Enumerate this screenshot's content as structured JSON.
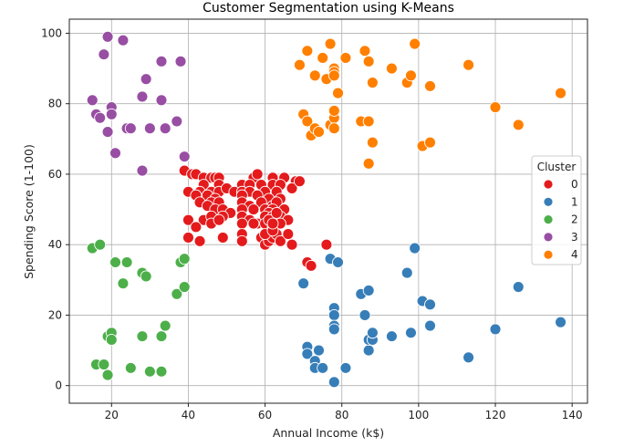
{
  "chart_data": {
    "type": "scatter",
    "title": "Customer Segmentation using K-Means",
    "xlabel": "Annual Income (k$)",
    "ylabel": "Spending Score (1-100)",
    "xlim": [
      9,
      144
    ],
    "ylim": [
      -5,
      104
    ],
    "xticks": [
      20,
      40,
      60,
      80,
      100,
      120,
      140
    ],
    "yticks": [
      0,
      20,
      40,
      60,
      80,
      100
    ],
    "grid": true,
    "legend": {
      "title": "Cluster",
      "placement": "right"
    },
    "series": [
      {
        "name": "0",
        "color": "#e41a1c",
        "points": [
          [
            39,
            61
          ],
          [
            41,
            60
          ],
          [
            42,
            60
          ],
          [
            44,
            59
          ],
          [
            46,
            59
          ],
          [
            47,
            59
          ],
          [
            48,
            59
          ],
          [
            57,
            59
          ],
          [
            58,
            60
          ],
          [
            62,
            59
          ],
          [
            65,
            59
          ],
          [
            68,
            58
          ],
          [
            44,
            57
          ],
          [
            48,
            57
          ],
          [
            54,
            57
          ],
          [
            56,
            57
          ],
          [
            59,
            57
          ],
          [
            62,
            57
          ],
          [
            64,
            57
          ],
          [
            67,
            56
          ],
          [
            69,
            58
          ],
          [
            40,
            55
          ],
          [
            43,
            55
          ],
          [
            46,
            55
          ],
          [
            48,
            55
          ],
          [
            50,
            56
          ],
          [
            52,
            55
          ],
          [
            54,
            55
          ],
          [
            56,
            55
          ],
          [
            60,
            55
          ],
          [
            63,
            55
          ],
          [
            42,
            54
          ],
          [
            45,
            54
          ],
          [
            47,
            53
          ],
          [
            54,
            54
          ],
          [
            58,
            54
          ],
          [
            61,
            53
          ],
          [
            64,
            53
          ],
          [
            43,
            52
          ],
          [
            46,
            52
          ],
          [
            48,
            52
          ],
          [
            54,
            52
          ],
          [
            56,
            51
          ],
          [
            59,
            52
          ],
          [
            62,
            51
          ],
          [
            63,
            52
          ],
          [
            45,
            51
          ],
          [
            47,
            50
          ],
          [
            49,
            50
          ],
          [
            51,
            49
          ],
          [
            54,
            50
          ],
          [
            57,
            50
          ],
          [
            60,
            50
          ],
          [
            62,
            50
          ],
          [
            65,
            50
          ],
          [
            61,
            49
          ],
          [
            40,
            47
          ],
          [
            44,
            47
          ],
          [
            46,
            48
          ],
          [
            49,
            48
          ],
          [
            54,
            48
          ],
          [
            56,
            47
          ],
          [
            58,
            46
          ],
          [
            60,
            48
          ],
          [
            62,
            48
          ],
          [
            64,
            48
          ],
          [
            66,
            47
          ],
          [
            42,
            45
          ],
          [
            46,
            46
          ],
          [
            48,
            47
          ],
          [
            54,
            46
          ],
          [
            57,
            46
          ],
          [
            60,
            46
          ],
          [
            62,
            45
          ],
          [
            64,
            46
          ],
          [
            40,
            42
          ],
          [
            43,
            41
          ],
          [
            49,
            42
          ],
          [
            54,
            43
          ],
          [
            54,
            41
          ],
          [
            59,
            42
          ],
          [
            60,
            40
          ],
          [
            61,
            41
          ],
          [
            62,
            42
          ],
          [
            63,
            43
          ],
          [
            64,
            41
          ],
          [
            66,
            43
          ],
          [
            67,
            40
          ],
          [
            60,
            43
          ],
          [
            62,
            44
          ],
          [
            61,
            47
          ],
          [
            62,
            46
          ],
          [
            63,
            49
          ],
          [
            76,
            40
          ],
          [
            71,
            35
          ],
          [
            72,
            34
          ]
        ]
      },
      {
        "name": "1",
        "color": "#377eb8",
        "points": [
          [
            70,
            29
          ],
          [
            71,
            11
          ],
          [
            71,
            9
          ],
          [
            73,
            7
          ],
          [
            73,
            5
          ],
          [
            74,
            10
          ],
          [
            75,
            5
          ],
          [
            77,
            36
          ],
          [
            78,
            22
          ],
          [
            78,
            20
          ],
          [
            78,
            17
          ],
          [
            78,
            16
          ],
          [
            78,
            1
          ],
          [
            79,
            35
          ],
          [
            81,
            5
          ],
          [
            85,
            26
          ],
          [
            86,
            20
          ],
          [
            87,
            27
          ],
          [
            87,
            10
          ],
          [
            87,
            13
          ],
          [
            88,
            13
          ],
          [
            88,
            15
          ],
          [
            93,
            14
          ],
          [
            97,
            32
          ],
          [
            98,
            15
          ],
          [
            99,
            39
          ],
          [
            101,
            24
          ],
          [
            103,
            23
          ],
          [
            103,
            17
          ],
          [
            113,
            8
          ],
          [
            120,
            16
          ],
          [
            126,
            28
          ],
          [
            137,
            18
          ]
        ]
      },
      {
        "name": "2",
        "color": "#4daf4a",
        "points": [
          [
            15,
            39
          ],
          [
            17,
            40
          ],
          [
            16,
            6
          ],
          [
            18,
            6
          ],
          [
            19,
            14
          ],
          [
            19,
            3
          ],
          [
            20,
            15
          ],
          [
            20,
            13
          ],
          [
            21,
            35
          ],
          [
            23,
            29
          ],
          [
            24,
            35
          ],
          [
            25,
            5
          ],
          [
            28,
            32
          ],
          [
            28,
            14
          ],
          [
            29,
            31
          ],
          [
            30,
            4
          ],
          [
            33,
            14
          ],
          [
            33,
            4
          ],
          [
            34,
            17
          ],
          [
            37,
            26
          ],
          [
            38,
            35
          ],
          [
            39,
            36
          ],
          [
            39,
            28
          ]
        ]
      },
      {
        "name": "3",
        "color": "#984ea3",
        "points": [
          [
            15,
            81
          ],
          [
            16,
            77
          ],
          [
            17,
            76
          ],
          [
            18,
            94
          ],
          [
            19,
            99
          ],
          [
            19,
            72
          ],
          [
            20,
            79
          ],
          [
            20,
            77
          ],
          [
            21,
            66
          ],
          [
            23,
            98
          ],
          [
            24,
            73
          ],
          [
            25,
            73
          ],
          [
            28,
            82
          ],
          [
            28,
            61
          ],
          [
            29,
            87
          ],
          [
            30,
            73
          ],
          [
            33,
            92
          ],
          [
            33,
            81
          ],
          [
            34,
            73
          ],
          [
            37,
            75
          ],
          [
            38,
            92
          ],
          [
            39,
            65
          ]
        ]
      },
      {
        "name": "4",
        "color": "#ff7f00",
        "points": [
          [
            69,
            91
          ],
          [
            70,
            77
          ],
          [
            71,
            95
          ],
          [
            71,
            75
          ],
          [
            72,
            71
          ],
          [
            73,
            88
          ],
          [
            73,
            73
          ],
          [
            74,
            72
          ],
          [
            75,
            93
          ],
          [
            76,
            87
          ],
          [
            77,
            97
          ],
          [
            77,
            74
          ],
          [
            78,
            90
          ],
          [
            78,
            89
          ],
          [
            78,
            88
          ],
          [
            78,
            76
          ],
          [
            78,
            78
          ],
          [
            78,
            73
          ],
          [
            79,
            83
          ],
          [
            81,
            93
          ],
          [
            85,
            75
          ],
          [
            86,
            95
          ],
          [
            87,
            92
          ],
          [
            87,
            75
          ],
          [
            88,
            86
          ],
          [
            88,
            69
          ],
          [
            87,
            63
          ],
          [
            93,
            90
          ],
          [
            97,
            86
          ],
          [
            98,
            88
          ],
          [
            99,
            97
          ],
          [
            101,
            68
          ],
          [
            103,
            85
          ],
          [
            103,
            69
          ],
          [
            113,
            91
          ],
          [
            120,
            79
          ],
          [
            126,
            74
          ],
          [
            137,
            83
          ]
        ]
      }
    ]
  }
}
